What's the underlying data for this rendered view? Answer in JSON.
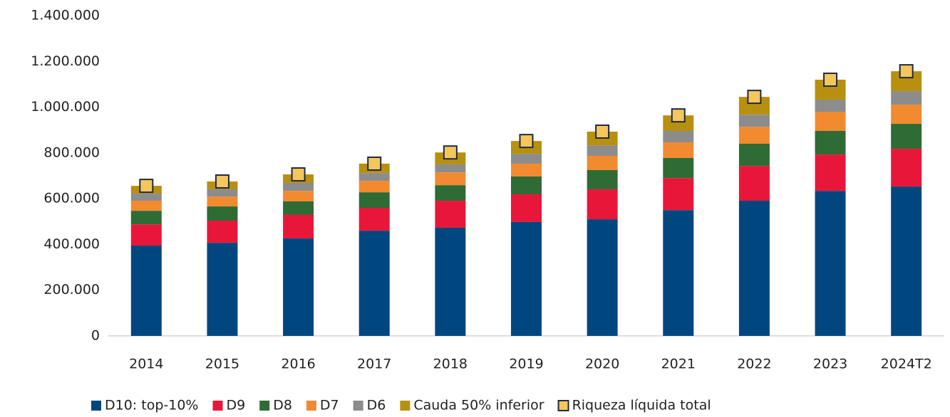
{
  "chart_data": {
    "type": "bar",
    "stacked": true,
    "categories": [
      "2014",
      "2015",
      "2016",
      "2017",
      "2018",
      "2019",
      "2020",
      "2021",
      "2022",
      "2023",
      "2024T2"
    ],
    "series": [
      {
        "name": "D10: top-10%",
        "color": "#00477f",
        "values": [
          395000,
          407000,
          426000,
          460000,
          473000,
          498000,
          510000,
          550000,
          591000,
          634000,
          653000
        ]
      },
      {
        "name": "D9",
        "color": "#e8173a",
        "values": [
          93000,
          97000,
          103000,
          100000,
          118000,
          121000,
          131000,
          140000,
          152000,
          159000,
          165000
        ]
      },
      {
        "name": "D8",
        "color": "#2f6b34",
        "values": [
          59000,
          62000,
          59000,
          68000,
          68000,
          78000,
          84000,
          88000,
          97000,
          103000,
          109000
        ]
      },
      {
        "name": "D7",
        "color": "#f28a30",
        "values": [
          44000,
          43000,
          46000,
          50000,
          56000,
          56000,
          62000,
          68000,
          74000,
          84000,
          84000
        ]
      },
      {
        "name": "D6",
        "color": "#8c8c8c",
        "values": [
          31000,
          32000,
          35000,
          34000,
          35000,
          43000,
          46000,
          50000,
          53000,
          53000,
          59000
        ]
      },
      {
        "name": "Cauda 50% inferior",
        "color": "#b8900f",
        "values": [
          34000,
          34000,
          37000,
          41000,
          52000,
          56000,
          60000,
          68000,
          78000,
          87000,
          87000
        ]
      }
    ],
    "total": {
      "name": "Riqueza líquida total",
      "color": "#f5c65a",
      "edge": "#1f2a44",
      "values": [
        656000,
        675000,
        706000,
        753000,
        802000,
        852000,
        893000,
        964000,
        1045000,
        1120000,
        1157000
      ]
    },
    "ylim": [
      0,
      1400000
    ],
    "yticks": [
      0,
      {
        "value": 200000,
        "label": "200.000"
      },
      {
        "value": 400000,
        "label": "400.000"
      },
      {
        "value": 600000,
        "label": "600.000"
      },
      {
        "value": 800000,
        "label": "800.000"
      },
      {
        "value": 1000000,
        "label": "1.000.000"
      },
      {
        "value": 1200000,
        "label": "1.200.000"
      },
      {
        "value": 1400000,
        "label": "1.400.000"
      }
    ],
    "grid": false,
    "legend": "bottom"
  }
}
